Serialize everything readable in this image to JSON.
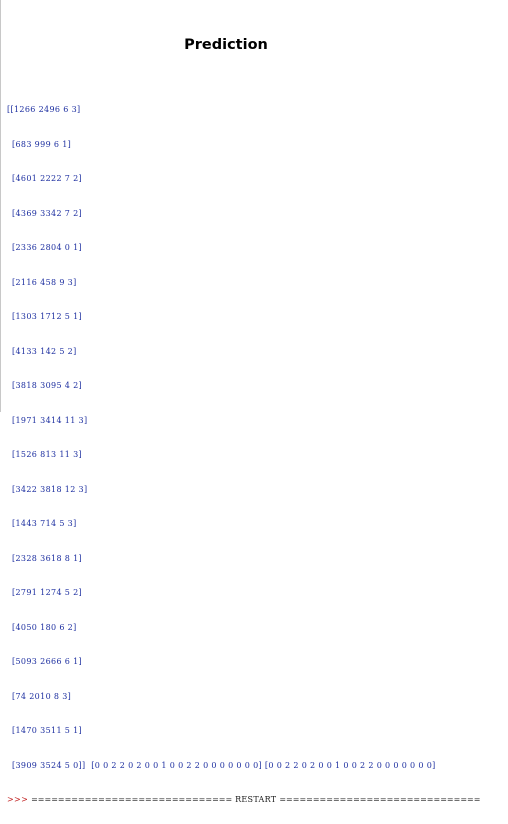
{
  "title": "Prediction",
  "console": {
    "rows": [
      "[[1266 2496 6 3]",
      "[683 999 6 1]",
      "[4601 2222 7 2]",
      "[4369 3342 7 2]",
      "[2336 2804 0 1]",
      "[2116 458 9 3]",
      "[1303 1712 5 1]",
      "[4133 142 5 2]",
      "[3818 3095 4 2]",
      "[1971 3414 11 3]",
      "[1526 813 11 3]",
      "[3422 3818 12 3]",
      "[1443 714 5 3]",
      "[2328 3618 8 1]",
      "[2791 1274 5 2]",
      "[4050 180 6 2]",
      "[5093 2666 6 1]",
      "[74 2010 8 3]",
      "[1470 3511 5 1]"
    ],
    "last_row": "[3909 3524 5 0]]",
    "predictions_1": "[0 0 2 2 0 2 0 0 1 0 0 2 2 0 0 0 0 0 0 0]",
    "predictions_2": "[0 0 2 2 0 2 0 0 1 0 0 2 2 0 0 0 0 0 0 0]",
    "prompt": ">>>",
    "restart_left": "==============================",
    "restart_label": "RESTART",
    "restart_right": "=============================="
  }
}
